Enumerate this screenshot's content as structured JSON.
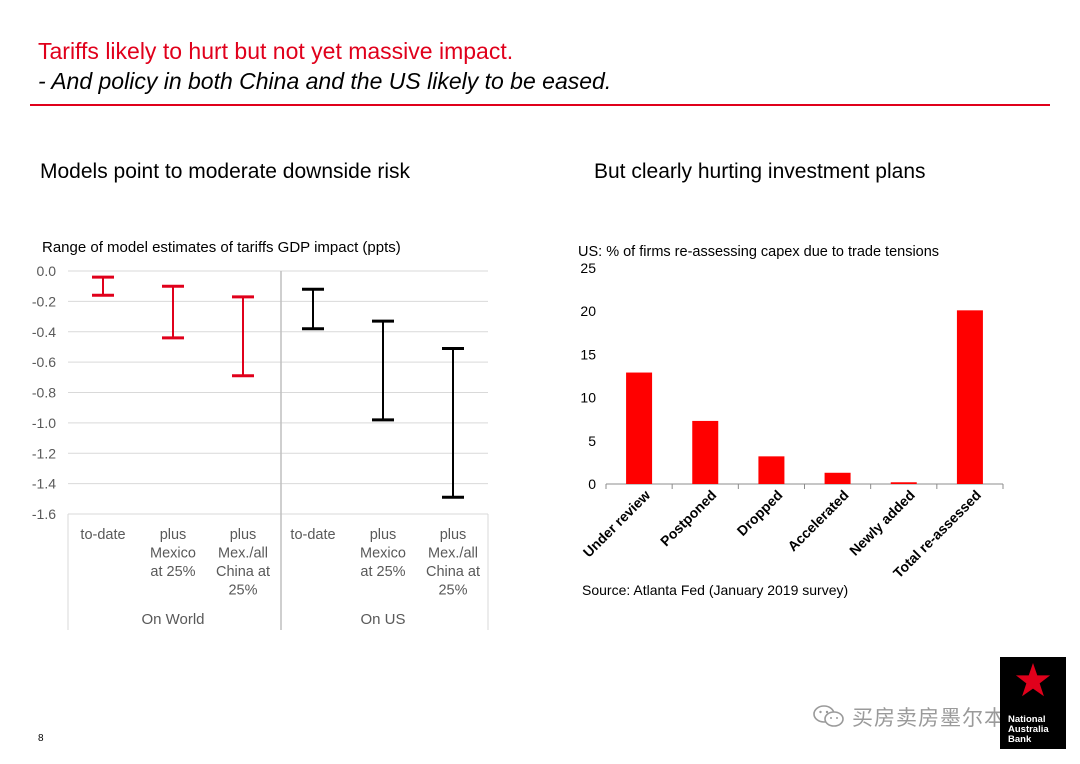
{
  "slide": {
    "title_line1": "Tariffs likely to hurt but not yet massive impact.",
    "title_line2": "- And policy in both China and the US likely to be eased.",
    "left_heading": "Models point to moderate downside risk",
    "right_heading": "But clearly hurting investment plans",
    "page_number": "8",
    "watermark": "买房卖房墨尔本",
    "logo_text": [
      "National",
      "Australia",
      "Bank"
    ]
  },
  "colors": {
    "accent_red": "#e0001b",
    "bar_red": "#ff0000",
    "range_black": "#000000",
    "grid": "#d9d9d9"
  },
  "chart_data": [
    {
      "type": "range",
      "title": "Range of model estimates of tariffs GDP impact (ppts)",
      "ylim": [
        -1.6,
        0.0
      ],
      "yticks": [
        "0.0",
        "-0.2",
        "-0.4",
        "-0.6",
        "-0.8",
        "-1.0",
        "-1.2",
        "-1.4",
        "-1.6"
      ],
      "grid": true,
      "groups": [
        "On World",
        "On US"
      ],
      "categories": [
        {
          "label": [
            "to-date"
          ],
          "group": "On World",
          "low": -0.16,
          "high": -0.04,
          "color": "#e0001b"
        },
        {
          "label": [
            "plus",
            "Mexico",
            "at 25%"
          ],
          "group": "On World",
          "low": -0.44,
          "high": -0.1,
          "color": "#e0001b"
        },
        {
          "label": [
            "plus",
            "Mex./all",
            "China at",
            "25%"
          ],
          "group": "On World",
          "low": -0.69,
          "high": -0.17,
          "color": "#e0001b"
        },
        {
          "label": [
            "to-date"
          ],
          "group": "On US",
          "low": -0.38,
          "high": -0.12,
          "color": "#000000"
        },
        {
          "label": [
            "plus",
            "Mexico",
            "at 25%"
          ],
          "group": "On US",
          "low": -0.98,
          "high": -0.33,
          "color": "#000000"
        },
        {
          "label": [
            "plus",
            "Mex./all",
            "China at",
            "25%"
          ],
          "group": "On US",
          "low": -1.49,
          "high": -0.51,
          "color": "#000000"
        }
      ]
    },
    {
      "type": "bar",
      "title": "US: % of firms re-assessing capex due to trade tensions",
      "categories": [
        "Under review",
        "Postponed",
        "Dropped",
        "Accelerated",
        "Newly added",
        "Total re-assessed"
      ],
      "values": [
        12.9,
        7.3,
        3.2,
        1.3,
        0.2,
        20.1
      ],
      "ylim": [
        0,
        25
      ],
      "yticks": [
        "0",
        "5",
        "10",
        "15",
        "20",
        "25"
      ],
      "grid": false,
      "source": "Source: Atlanta Fed (January 2019 survey)"
    }
  ]
}
